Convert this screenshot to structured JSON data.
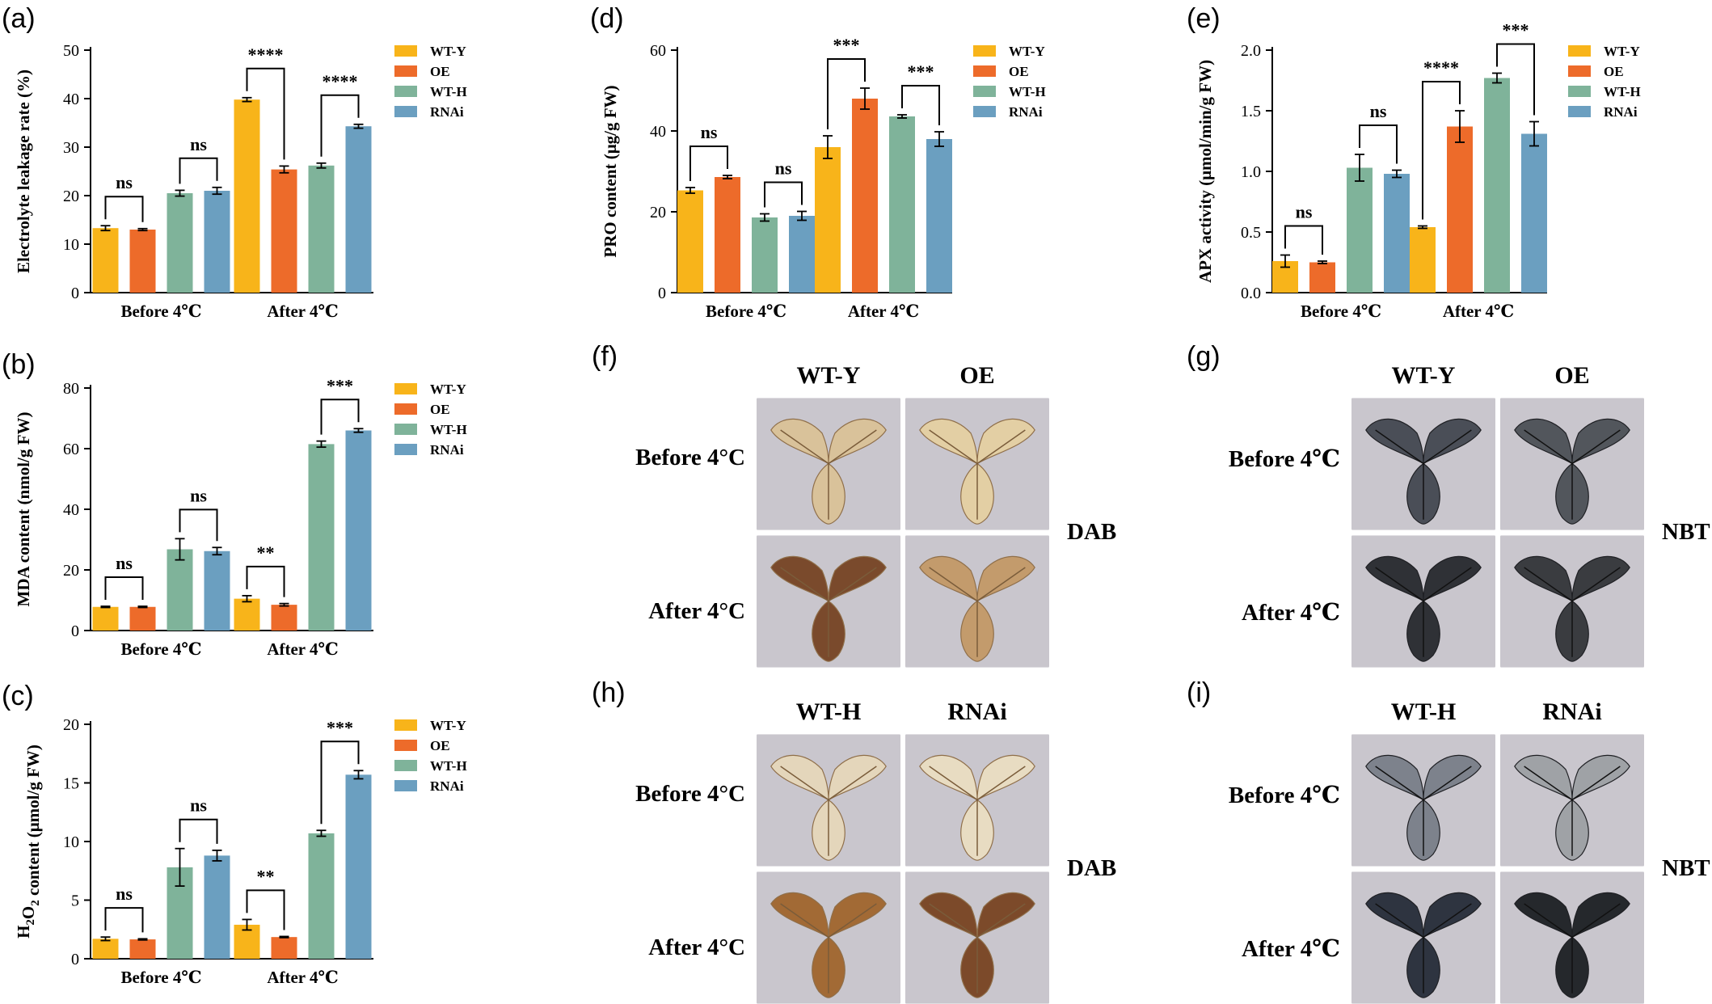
{
  "colors": {
    "WT-Y": "#f8b41a",
    "OE": "#ed6b2a",
    "WT-H": "#7fb39a",
    "RNAi": "#6b9fc0"
  },
  "chart_data": [
    {
      "id": "a",
      "letter": "(a)",
      "type": "bar",
      "ylabel": "Electrolyte leakage rate (%)",
      "ylabel_html": "Electrolyte leakage rate (%)",
      "ylim": [
        0,
        50
      ],
      "yticks": [
        0,
        10,
        20,
        30,
        40,
        50
      ],
      "ytick_labels": [
        "0",
        "10",
        "20",
        "30",
        "40",
        "50"
      ],
      "categories": [
        "Before 4℃",
        "After 4℃"
      ],
      "legend": [
        "WT-Y",
        "OE",
        "WT-H",
        "RNAi"
      ],
      "series": [
        {
          "name": "WT-Y",
          "values": [
            13.3,
            39.8
          ],
          "errors": [
            0.5,
            0.4
          ]
        },
        {
          "name": "OE",
          "values": [
            13.0,
            25.4
          ],
          "errors": [
            0.2,
            0.7
          ]
        },
        {
          "name": "WT-H",
          "values": [
            20.5,
            26.2
          ],
          "errors": [
            0.6,
            0.5
          ]
        },
        {
          "name": "RNAi",
          "values": [
            21.0,
            34.3
          ],
          "errors": [
            0.7,
            0.4
          ]
        }
      ],
      "significance": [
        {
          "group": 0,
          "pair": [
            0,
            1
          ],
          "label": "ns"
        },
        {
          "group": 0,
          "pair": [
            2,
            3
          ],
          "label": "ns"
        },
        {
          "group": 1,
          "pair": [
            0,
            1
          ],
          "label": "****"
        },
        {
          "group": 1,
          "pair": [
            2,
            3
          ],
          "label": "****"
        }
      ]
    },
    {
      "id": "b",
      "letter": "(b)",
      "type": "bar",
      "ylabel": "MDA content (nmol/g FW)",
      "ylim": [
        0,
        80
      ],
      "yticks": [
        0,
        20,
        40,
        60,
        80
      ],
      "ytick_labels": [
        "0",
        "20",
        "40",
        "60",
        "80"
      ],
      "categories": [
        "Before 4℃",
        "After 4℃"
      ],
      "legend": [
        "WT-Y",
        "OE",
        "WT-H",
        "RNAi"
      ],
      "series": [
        {
          "name": "WT-Y",
          "values": [
            7.8,
            10.5
          ],
          "errors": [
            0.2,
            1.0
          ]
        },
        {
          "name": "OE",
          "values": [
            7.8,
            8.5
          ],
          "errors": [
            0.2,
            0.4
          ]
        },
        {
          "name": "WT-H",
          "values": [
            26.8,
            61.5
          ],
          "errors": [
            3.5,
            1.0
          ]
        },
        {
          "name": "RNAi",
          "values": [
            26.2,
            66.0
          ],
          "errors": [
            1.2,
            0.6
          ]
        }
      ],
      "significance": [
        {
          "group": 0,
          "pair": [
            0,
            1
          ],
          "label": "ns"
        },
        {
          "group": 0,
          "pair": [
            2,
            3
          ],
          "label": "ns"
        },
        {
          "group": 1,
          "pair": [
            0,
            1
          ],
          "label": "**"
        },
        {
          "group": 1,
          "pair": [
            2,
            3
          ],
          "label": "***"
        }
      ]
    },
    {
      "id": "c",
      "letter": "(c)",
      "type": "bar",
      "ylabel": "H2O2 content (μmol/g FW)",
      "ylim": [
        0,
        20
      ],
      "yticks": [
        0,
        5,
        10,
        15,
        20
      ],
      "ytick_labels": [
        "0",
        "5",
        "10",
        "15",
        "20"
      ],
      "categories": [
        "Before 4℃",
        "After 4℃"
      ],
      "legend": [
        "WT-Y",
        "OE",
        "WT-H",
        "RNAi"
      ],
      "series": [
        {
          "name": "WT-Y",
          "values": [
            1.7,
            2.9
          ],
          "errors": [
            0.15,
            0.45
          ]
        },
        {
          "name": "OE",
          "values": [
            1.65,
            1.85
          ],
          "errors": [
            0.05,
            0.05
          ]
        },
        {
          "name": "WT-H",
          "values": [
            7.8,
            10.7
          ],
          "errors": [
            1.6,
            0.25
          ]
        },
        {
          "name": "RNAi",
          "values": [
            8.8,
            15.7
          ],
          "errors": [
            0.45,
            0.35
          ]
        }
      ],
      "significance": [
        {
          "group": 0,
          "pair": [
            0,
            1
          ],
          "label": "ns"
        },
        {
          "group": 0,
          "pair": [
            2,
            3
          ],
          "label": "ns"
        },
        {
          "group": 1,
          "pair": [
            0,
            1
          ],
          "label": "**"
        },
        {
          "group": 1,
          "pair": [
            2,
            3
          ],
          "label": "***"
        }
      ]
    },
    {
      "id": "d",
      "letter": "(d)",
      "type": "bar",
      "ylabel": "PRO content (μg/g FW)",
      "ylim": [
        0,
        60
      ],
      "yticks": [
        0,
        20,
        40,
        60
      ],
      "ytick_labels": [
        "0",
        "20",
        "40",
        "60"
      ],
      "categories": [
        "Before 4℃",
        "After 4℃"
      ],
      "legend": [
        "WT-Y",
        "OE",
        "WT-H",
        "RNAi"
      ],
      "series": [
        {
          "name": "WT-Y",
          "values": [
            25.3,
            36.0
          ],
          "errors": [
            0.7,
            2.8
          ]
        },
        {
          "name": "OE",
          "values": [
            28.6,
            48.0
          ],
          "errors": [
            0.4,
            2.6
          ]
        },
        {
          "name": "WT-H",
          "values": [
            18.6,
            43.6
          ],
          "errors": [
            0.9,
            0.4
          ]
        },
        {
          "name": "RNAi",
          "values": [
            19.0,
            38.0
          ],
          "errors": [
            1.1,
            1.8
          ]
        }
      ],
      "significance": [
        {
          "group": 0,
          "pair": [
            0,
            1
          ],
          "label": "ns"
        },
        {
          "group": 0,
          "pair": [
            2,
            3
          ],
          "label": "ns"
        },
        {
          "group": 1,
          "pair": [
            0,
            1
          ],
          "label": "***"
        },
        {
          "group": 1,
          "pair": [
            2,
            3
          ],
          "label": "***"
        }
      ]
    },
    {
      "id": "e",
      "letter": "(e)",
      "type": "bar",
      "ylabel": "APX activity (μmol/min/g FW)",
      "ylim": [
        0,
        2.0
      ],
      "yticks": [
        0,
        0.5,
        1.0,
        1.5,
        2.0
      ],
      "ytick_labels": [
        "0.0",
        "0.5",
        "1.0",
        "1.5",
        "2.0"
      ],
      "categories": [
        "Before 4℃",
        "After 4℃"
      ],
      "legend": [
        "WT-Y",
        "OE",
        "WT-H",
        "RNAi"
      ],
      "series": [
        {
          "name": "WT-Y",
          "values": [
            0.26,
            0.54
          ],
          "errors": [
            0.05,
            0.01
          ]
        },
        {
          "name": "OE",
          "values": [
            0.25,
            1.37
          ],
          "errors": [
            0.01,
            0.13
          ]
        },
        {
          "name": "WT-H",
          "values": [
            1.03,
            1.77
          ],
          "errors": [
            0.11,
            0.04
          ]
        },
        {
          "name": "RNAi",
          "values": [
            0.98,
            1.31
          ],
          "errors": [
            0.03,
            0.1
          ]
        }
      ],
      "significance": [
        {
          "group": 0,
          "pair": [
            0,
            1
          ],
          "label": "ns"
        },
        {
          "group": 0,
          "pair": [
            2,
            3
          ],
          "label": "ns"
        },
        {
          "group": 1,
          "pair": [
            0,
            1
          ],
          "label": "****"
        },
        {
          "group": 1,
          "pair": [
            2,
            3
          ],
          "label": "***"
        }
      ]
    }
  ],
  "photo_panels": [
    {
      "id": "f",
      "letter": "(f)",
      "columns": [
        "WT-Y",
        "OE"
      ],
      "rows": [
        "Before 4°C",
        "After 4°C"
      ],
      "stain": "DAB",
      "tones": [
        [
          "#d9c29a",
          "#e3cfa4"
        ],
        [
          "#7a4a2c",
          "#c39b6c"
        ]
      ]
    },
    {
      "id": "g",
      "letter": "(g)",
      "columns": [
        "WT-Y",
        "OE"
      ],
      "rows": [
        "Before 4℃",
        "After 4℃"
      ],
      "stain": "NBT",
      "tones": [
        [
          "#4a4e57",
          "#52565c"
        ],
        [
          "#2f3136",
          "#3a3c40"
        ]
      ]
    },
    {
      "id": "h",
      "letter": "(h)",
      "columns": [
        "WT-H",
        "RNAi"
      ],
      "rows": [
        "Before 4°C",
        "After 4°C"
      ],
      "stain": "DAB",
      "tones": [
        [
          "#e4d6bb",
          "#e8dcc2"
        ],
        [
          "#a26a35",
          "#7c4a2a"
        ]
      ]
    },
    {
      "id": "i",
      "letter": "(i)",
      "columns": [
        "WT-H",
        "RNAi"
      ],
      "rows": [
        "Before 4℃",
        "After 4℃"
      ],
      "stain": "NBT",
      "tones": [
        [
          "#7d828c",
          "#9fa2a6"
        ],
        [
          "#2e3440",
          "#25282c"
        ]
      ]
    }
  ]
}
